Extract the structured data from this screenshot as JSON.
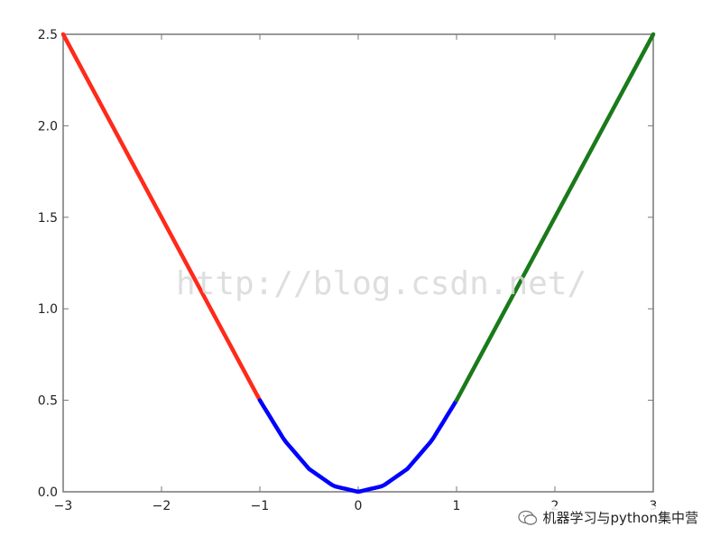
{
  "chart_data": {
    "type": "line",
    "title": "",
    "xlabel": "",
    "ylabel": "",
    "xlim": [
      -3,
      3
    ],
    "ylim": [
      0,
      2.5
    ],
    "xticks": [
      -3,
      -2,
      -1,
      0,
      1,
      2,
      3
    ],
    "yticks": [
      0.0,
      0.5,
      1.0,
      1.5,
      2.0,
      2.5
    ],
    "xtick_labels": [
      "−3",
      "−2",
      "−1",
      "0",
      "1",
      "2",
      "3"
    ],
    "ytick_labels": [
      "0.0",
      "0.5",
      "1.0",
      "1.5",
      "2.0",
      "2.5"
    ],
    "grid": false,
    "series": [
      {
        "color": "#ff2a1a",
        "x": [
          -3,
          -1
        ],
        "y": [
          2.5,
          0.5
        ]
      },
      {
        "color": "#0000ff",
        "x": [
          -1,
          -0.75,
          -0.5,
          -0.25,
          0,
          0.25,
          0.5,
          0.75,
          1
        ],
        "y": [
          0.5,
          0.28125,
          0.125,
          0.03125,
          0,
          0.03125,
          0.125,
          0.28125,
          0.5
        ]
      },
      {
        "color": "#1a7a1a",
        "x": [
          1,
          3
        ],
        "y": [
          0.5,
          2.5
        ]
      }
    ]
  },
  "watermark_text": "http://blog.csdn.net/",
  "badge": {
    "text": "机器学习与python集中营",
    "icon": "wechat-icon"
  }
}
